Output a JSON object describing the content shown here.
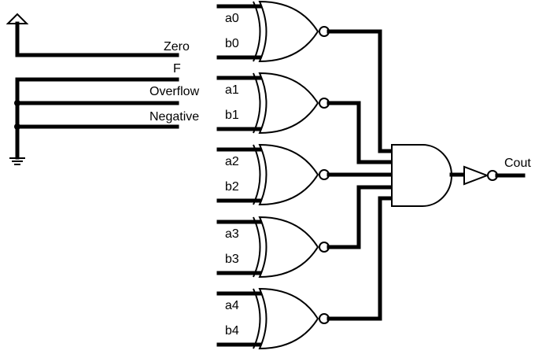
{
  "left_labels": {
    "zero": "Zero",
    "f": "F",
    "overflow": "Overflow",
    "negative": "Negative"
  },
  "gates": [
    {
      "a": "a0",
      "b": "b0"
    },
    {
      "a": "a1",
      "b": "b1"
    },
    {
      "a": "a2",
      "b": "b2"
    },
    {
      "a": "a3",
      "b": "b3"
    },
    {
      "a": "a4",
      "b": "b4"
    }
  ],
  "output_label": "Cout",
  "icons": [
    "power-supply-icon",
    "ground-icon",
    "xnor-gate-icon",
    "and-gate-icon",
    "buffer-icon"
  ]
}
